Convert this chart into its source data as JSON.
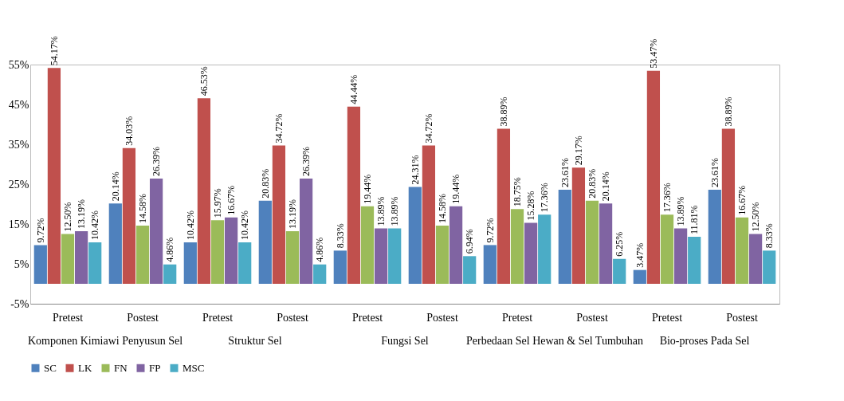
{
  "chart_data": {
    "type": "bar",
    "categories": [
      "Pretest",
      "Postest",
      "Pretest",
      "Postest",
      "Pretest",
      "Postest",
      "Pretest",
      "Postest",
      "Pretest",
      "Postest"
    ],
    "series": [
      {
        "name": "SC",
        "color": "#4f81bd",
        "values": [
          9.72,
          20.14,
          10.42,
          20.83,
          8.33,
          24.31,
          9.72,
          23.61,
          3.47,
          23.61
        ],
        "value_labels": [
          "9.72%",
          "20.14%",
          "10.42%",
          "20.83%",
          "8.33%",
          "24.31%",
          "9.72%",
          "23.61%",
          "3.47%",
          "23.61%"
        ]
      },
      {
        "name": "LK",
        "color": "#c0504d",
        "values": [
          54.17,
          34.03,
          46.53,
          34.72,
          44.44,
          34.72,
          38.89,
          29.17,
          53.47,
          38.89
        ],
        "value_labels": [
          "54.17%",
          "34.03%",
          "46.53%",
          "34.72%",
          "44.44%",
          "34.72%",
          "38.89%",
          "29.17%",
          "53.47%",
          "38.89%"
        ]
      },
      {
        "name": "FN",
        "color": "#9bbb59",
        "values": [
          12.5,
          14.58,
          15.97,
          13.19,
          19.44,
          14.58,
          18.75,
          20.83,
          17.36,
          16.67
        ],
        "value_labels": [
          "12.50%",
          "14.58%",
          "15.97%",
          "13.19%",
          "19.44%",
          "14.58%",
          "18.75%",
          "20.83%",
          "17.36%",
          "16.67%"
        ]
      },
      {
        "name": "FP",
        "color": "#8064a2",
        "values": [
          13.19,
          26.39,
          16.67,
          26.39,
          13.89,
          19.44,
          15.28,
          20.14,
          13.89,
          12.5
        ],
        "value_labels": [
          "13.19%",
          "26.39%",
          "16.67%",
          "26.39%",
          "13.89%",
          "19.44%",
          "15.28%",
          "20.14%",
          "13.89%",
          "12.50%"
        ]
      },
      {
        "name": "MSC",
        "color": "#4bacc6",
        "values": [
          10.42,
          4.86,
          10.42,
          4.86,
          13.89,
          6.94,
          17.36,
          6.25,
          11.81,
          8.33
        ],
        "value_labels": [
          "10.42%",
          "4.86%",
          "10.42%",
          "4.86%",
          "13.89%",
          "6.94%",
          "17.36%",
          "6.25%",
          "11.81%",
          "8.33%"
        ]
      }
    ],
    "annotations": [
      "Komponen Kimiawi Penyusun Sel",
      "Struktur Sel",
      "Fungsi Sel",
      "Perbedaan Sel Hewan & Sel Tumbuhan",
      "Bio-proses Pada Sel"
    ],
    "ylim": [
      -5,
      55
    ],
    "yticks": [
      {
        "value": -5,
        "label": "-5%"
      },
      {
        "value": 5,
        "label": "5%"
      },
      {
        "value": 15,
        "label": "15%"
      },
      {
        "value": 25,
        "label": "25%"
      },
      {
        "value": 35,
        "label": "35%"
      },
      {
        "value": 45,
        "label": "45%"
      },
      {
        "value": 55,
        "label": "55%"
      }
    ],
    "grid": false,
    "legend": "bottom"
  }
}
